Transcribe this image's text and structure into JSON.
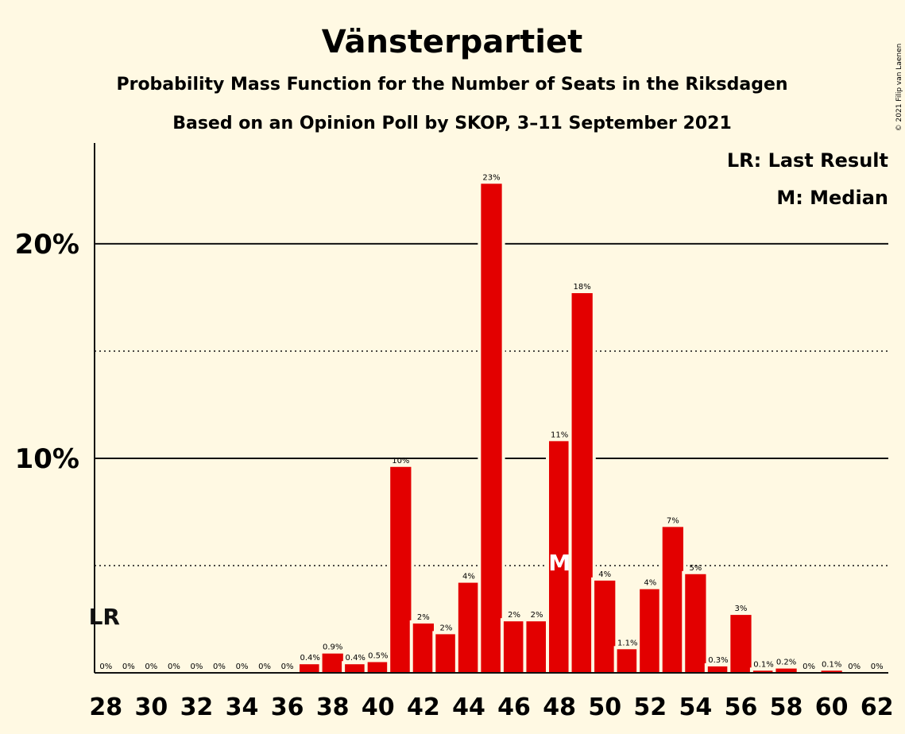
{
  "chart_data": {
    "type": "bar",
    "title": "Vänsterpartiet",
    "subtitle": "Probability Mass Function for the Number of Seats in the Riksdagen",
    "subtitle2": "Based on an Opinion Poll by SKOP, 3–11 September 2021",
    "copyright": "© 2021 Filip van Laenen",
    "legend": {
      "placement": "top-right",
      "entries": [
        "LR: Last Result",
        "M: Median"
      ]
    },
    "x": [
      28,
      29,
      30,
      31,
      32,
      33,
      34,
      35,
      36,
      37,
      38,
      39,
      40,
      41,
      42,
      43,
      44,
      45,
      46,
      47,
      48,
      49,
      50,
      51,
      52,
      53,
      54,
      55,
      56,
      57,
      58,
      59,
      60,
      61,
      62
    ],
    "values": [
      0,
      0,
      0,
      0,
      0,
      0,
      0,
      0,
      0,
      0.4,
      0.9,
      0.4,
      0.5,
      9.6,
      2.3,
      1.8,
      4.2,
      22.8,
      2.4,
      2.4,
      10.8,
      17.7,
      4.3,
      1.1,
      3.9,
      6.8,
      4.6,
      0.3,
      2.7,
      0.1,
      0.2,
      0,
      0.1,
      0,
      0
    ],
    "labels": [
      "0%",
      "0%",
      "0%",
      "0%",
      "0%",
      "0%",
      "0%",
      "0%",
      "0%",
      "0.4%",
      "0.9%",
      "0.4%",
      "0.5%",
      "10%",
      "2%",
      "2%",
      "4%",
      "23%",
      "2%",
      "2%",
      "11%",
      "18%",
      "4%",
      "1.1%",
      "4%",
      "7%",
      "5%",
      "0.3%",
      "3%",
      "0.1%",
      "0.2%",
      "0%",
      "0.1%",
      "0%",
      "0%"
    ],
    "x_ticks": [
      28,
      30,
      32,
      34,
      36,
      38,
      40,
      42,
      44,
      46,
      48,
      50,
      52,
      54,
      56,
      58,
      60,
      62
    ],
    "y_ticks": [
      {
        "value": 10,
        "label": "10%"
      },
      {
        "value": 20,
        "label": "20%"
      }
    ],
    "y_minor_gridlines": [
      5,
      15
    ],
    "ylim": [
      0,
      24.7
    ],
    "last_result_seat": 28,
    "last_result_label": "LR",
    "median_seat": 48,
    "median_label": "M",
    "bar_color": "#E30000"
  }
}
